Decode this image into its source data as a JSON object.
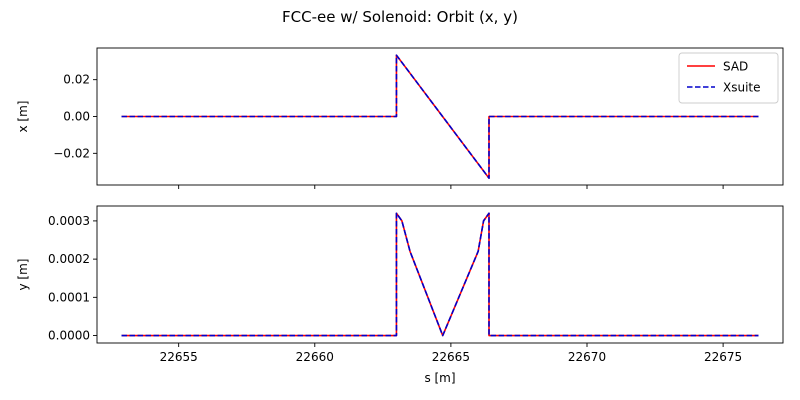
{
  "figure": {
    "title": "FCC-ee w/ Solenoid: Orbit (x, y)"
  },
  "chart_data": [
    {
      "type": "line",
      "ylabel": "x [m]",
      "xlabel": "",
      "xlim": [
        22652.0,
        22677.2
      ],
      "ylim": [
        -0.0372,
        0.0372
      ],
      "xticks": [
        22655,
        22660,
        22665,
        22670,
        22675
      ],
      "xtick_labels_shown": false,
      "yticks": [
        -0.02,
        0.0,
        0.02
      ],
      "ytick_labels": [
        "−0.02",
        "0.00",
        "0.02"
      ],
      "grid": false,
      "legend": {
        "placement": "top-right",
        "entries": [
          "SAD",
          "Xsuite"
        ]
      },
      "series": [
        {
          "name": "SAD",
          "color": "#ff0000",
          "style": "solid",
          "x": [
            22652.9,
            22663.0,
            22663.0,
            22666.4,
            22666.4,
            22676.3
          ],
          "y": [
            0.0,
            0.0,
            0.0333,
            -0.0335,
            0.0,
            0.0
          ]
        },
        {
          "name": "Xsuite",
          "color": "#0000cc",
          "style": "dashed",
          "x": [
            22652.9,
            22663.0,
            22663.0,
            22666.4,
            22666.4,
            22676.3
          ],
          "y": [
            0.0,
            0.0,
            0.0333,
            -0.0335,
            0.0,
            0.0
          ]
        }
      ]
    },
    {
      "type": "line",
      "ylabel": "y [m]",
      "xlabel": "s [m]",
      "xlim": [
        22652.0,
        22677.2
      ],
      "ylim": [
        -1.95e-05,
        0.000339
      ],
      "xticks": [
        22655,
        22660,
        22665,
        22670,
        22675
      ],
      "xtick_labels": [
        "22655",
        "22660",
        "22665",
        "22670",
        "22675"
      ],
      "yticks": [
        0.0,
        0.0001,
        0.0002,
        0.0003
      ],
      "ytick_labels": [
        "0.0000",
        "0.0001",
        "0.0002",
        "0.0003"
      ],
      "grid": false,
      "series": [
        {
          "name": "SAD",
          "color": "#ff0000",
          "style": "solid",
          "x": [
            22652.9,
            22663.0,
            22663.0,
            22663.2,
            22663.5,
            22664.7,
            22666.0,
            22666.2,
            22666.4,
            22666.4,
            22676.3
          ],
          "y": [
            0.0,
            0.0,
            0.00032,
            0.0003,
            0.00022,
            0.0,
            0.00022,
            0.0003,
            0.00032,
            0.0,
            0.0
          ]
        },
        {
          "name": "Xsuite",
          "color": "#0000cc",
          "style": "dashed",
          "x": [
            22652.9,
            22663.0,
            22663.0,
            22663.2,
            22663.5,
            22664.7,
            22666.0,
            22666.2,
            22666.4,
            22666.4,
            22676.3
          ],
          "y": [
            0.0,
            0.0,
            0.00032,
            0.0003,
            0.00022,
            0.0,
            0.00022,
            0.0003,
            0.00032,
            0.0,
            0.0
          ]
        }
      ]
    }
  ]
}
